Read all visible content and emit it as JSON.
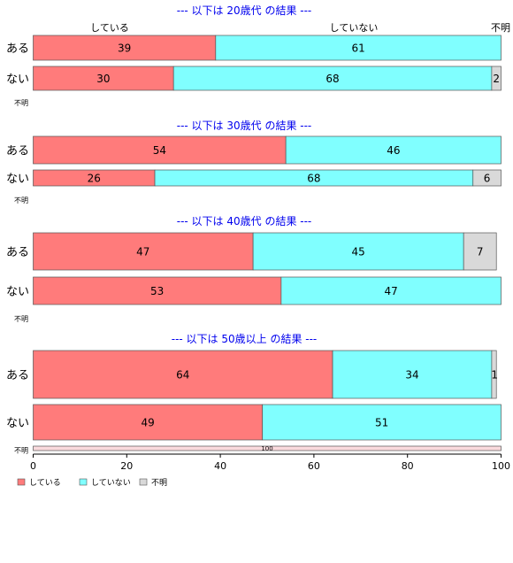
{
  "chart_data": {
    "type": "bar",
    "orientation": "horizontal",
    "stacked": true,
    "x_axis": {
      "range": [
        0,
        100
      ],
      "ticks": [
        0,
        20,
        40,
        60,
        80,
        100
      ]
    },
    "top_labels": [
      "している",
      "していない",
      "不明"
    ],
    "colors": {
      "している": "#ff7b7b",
      "していない": "#80ffff",
      "不明": "#d9d9d9",
      "title": "#0000ee"
    },
    "legend": {
      "position": "bottom-left",
      "items": [
        "している",
        "していない",
        "不明"
      ]
    },
    "panels": [
      {
        "title": "--- 以下は 20歳代 の結果 ---",
        "categories": [
          "ある",
          "ない",
          "不明"
        ],
        "series": [
          {
            "name": "している",
            "values": [
              39,
              30,
              0
            ]
          },
          {
            "name": "していない",
            "values": [
              61,
              68,
              0
            ]
          },
          {
            "name": "不明",
            "values": [
              0,
              2,
              0
            ]
          }
        ]
      },
      {
        "title": "--- 以下は 30歳代 の結果 ---",
        "categories": [
          "ある",
          "ない",
          "不明"
        ],
        "series": [
          {
            "name": "している",
            "values": [
              54,
              26,
              0
            ]
          },
          {
            "name": "していない",
            "values": [
              46,
              68,
              0
            ]
          },
          {
            "name": "不明",
            "values": [
              0,
              6,
              0
            ]
          }
        ]
      },
      {
        "title": "--- 以下は 40歳代 の結果 ---",
        "categories": [
          "ある",
          "ない",
          "不明"
        ],
        "series": [
          {
            "name": "している",
            "values": [
              47,
              53,
              0
            ]
          },
          {
            "name": "していない",
            "values": [
              45,
              47,
              0
            ]
          },
          {
            "name": "不明",
            "values": [
              7,
              0,
              0
            ]
          }
        ]
      },
      {
        "title": "--- 以下は 50歳以上 の結果 ---",
        "categories": [
          "ある",
          "ない",
          "不明"
        ],
        "series": [
          {
            "name": "している",
            "values": [
              64,
              49,
              0
            ]
          },
          {
            "name": "していない",
            "values": [
              34,
              51,
              0
            ]
          },
          {
            "name": "不明",
            "values": [
              1,
              0,
              100
            ]
          }
        ]
      }
    ]
  }
}
